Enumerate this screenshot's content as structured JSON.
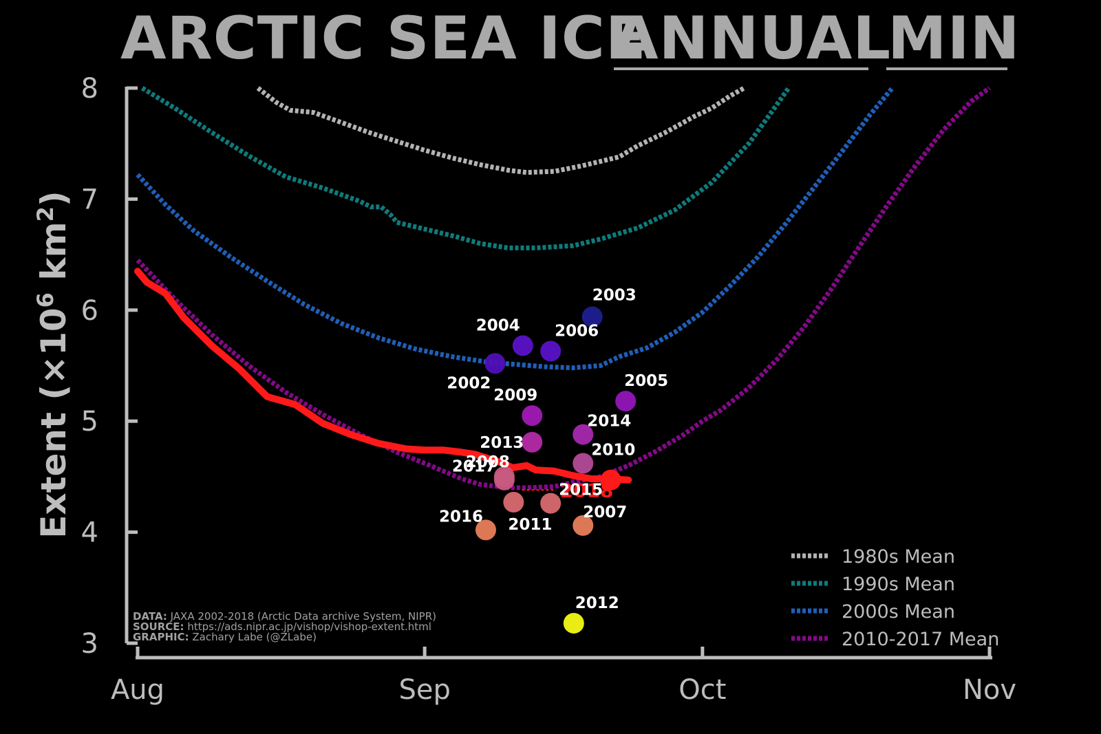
{
  "chart_data": {
    "type": "line",
    "title": {
      "part1": "ARCTIC SEA ICE",
      "part2": "ANNUAL",
      "part3": "MIN"
    },
    "ylabel": {
      "main": "Extent (×10",
      "sup": "6",
      "unit": " km",
      "sup2": "2",
      "close": ")"
    },
    "xlabel": "",
    "ylim": [
      3,
      8
    ],
    "yticks": [
      "3",
      "4",
      "5",
      "6",
      "7",
      "8"
    ],
    "xlim": [
      0,
      92
    ],
    "xticks": [
      {
        "label": "Aug",
        "x": 0
      },
      {
        "label": "Sep",
        "x": 31
      },
      {
        "label": "Oct",
        "x": 61
      },
      {
        "label": "Nov",
        "x": 92
      }
    ],
    "series": [
      {
        "name": "1980s Mean",
        "color": "#b3b3b3",
        "x": [
          13,
          15,
          16.5,
          19,
          22,
          25,
          28,
          31,
          34,
          37,
          40,
          42,
          45,
          48,
          52,
          54,
          57,
          60,
          62,
          64,
          65.5
        ],
        "values": [
          8.0,
          7.87,
          7.8,
          7.78,
          7.69,
          7.6,
          7.52,
          7.44,
          7.37,
          7.31,
          7.26,
          7.24,
          7.25,
          7.3,
          7.38,
          7.48,
          7.6,
          7.74,
          7.82,
          7.93,
          8.0
        ]
      },
      {
        "name": "1990s Mean",
        "color": "#0f7b7b",
        "x": [
          0.5,
          4,
          8,
          12,
          16,
          20,
          24,
          25.2,
          26.3,
          27.3,
          28,
          31,
          34,
          37,
          40,
          43,
          47,
          50,
          54,
          58,
          62,
          66,
          68,
          70.3
        ],
        "values": [
          8.0,
          7.82,
          7.6,
          7.39,
          7.2,
          7.1,
          6.98,
          6.93,
          6.93,
          6.86,
          6.79,
          6.73,
          6.67,
          6.6,
          6.56,
          6.56,
          6.58,
          6.64,
          6.74,
          6.9,
          7.15,
          7.5,
          7.73,
          8.0
        ]
      },
      {
        "name": "2000s Mean",
        "color": "#1f5fb8",
        "x": [
          0,
          3,
          6,
          10,
          14,
          18,
          22,
          26,
          30,
          34,
          38,
          41,
          44,
          47,
          50,
          52,
          55,
          58,
          61,
          64,
          67,
          70,
          73,
          76,
          79,
          81.5
        ],
        "values": [
          7.22,
          6.95,
          6.72,
          6.48,
          6.26,
          6.05,
          5.88,
          5.75,
          5.65,
          5.58,
          5.53,
          5.51,
          5.49,
          5.48,
          5.5,
          5.58,
          5.66,
          5.8,
          5.98,
          6.22,
          6.48,
          6.78,
          7.1,
          7.42,
          7.75,
          8.0
        ]
      },
      {
        "name": "2010-2017 Mean",
        "color": "#86098a",
        "x": [
          0,
          4,
          8,
          12,
          16,
          20,
          24,
          28,
          31,
          33,
          35,
          37,
          40,
          42,
          45,
          47,
          50,
          53,
          56,
          59,
          61,
          63,
          66,
          69,
          72,
          75,
          78,
          81,
          84,
          87,
          90,
          92
        ],
        "values": [
          6.45,
          6.1,
          5.78,
          5.5,
          5.26,
          5.06,
          4.88,
          4.72,
          4.62,
          4.55,
          4.48,
          4.43,
          4.4,
          4.4,
          4.41,
          4.45,
          4.5,
          4.6,
          4.73,
          4.88,
          5.0,
          5.1,
          5.3,
          5.55,
          5.85,
          6.2,
          6.58,
          6.95,
          7.3,
          7.62,
          7.88,
          8.0
        ]
      },
      {
        "name": "2018",
        "color": "#ff1a1a",
        "x": [
          0,
          1,
          3,
          5,
          8,
          11,
          14,
          17,
          20,
          23,
          26,
          29,
          31,
          33,
          35,
          36.5,
          38,
          39.5,
          40.5,
          42,
          43,
          45,
          47,
          49,
          51,
          53
        ],
        "values": [
          6.35,
          6.25,
          6.15,
          5.93,
          5.68,
          5.47,
          5.22,
          5.15,
          4.98,
          4.88,
          4.8,
          4.75,
          4.74,
          4.74,
          4.72,
          4.7,
          4.66,
          4.62,
          4.58,
          4.6,
          4.56,
          4.55,
          4.51,
          4.48,
          4.48,
          4.47
        ]
      }
    ],
    "minima_points": {
      "columns": [
        "label",
        "x",
        "y"
      ],
      "rows": [
        [
          "2002",
          38.6,
          5.52,
          "#5010b8"
        ],
        [
          "2003",
          49.1,
          5.94,
          "#1f1f90"
        ],
        [
          "2004",
          41.6,
          5.68,
          "#5b12c8"
        ],
        [
          "2005",
          52.7,
          5.18,
          "#9416b8"
        ],
        [
          "2006",
          44.6,
          5.63,
          "#5b12c8"
        ],
        [
          "2007",
          48.1,
          4.06,
          "#e87e5a"
        ],
        [
          "2008",
          39.6,
          4.5,
          "#c85a80"
        ],
        [
          "2009",
          42.6,
          5.05,
          "#a01ab4"
        ],
        [
          "2010",
          48.1,
          4.62,
          "#b44a98"
        ],
        [
          "2011",
          40.6,
          4.27,
          "#d86a70"
        ],
        [
          "2012",
          47.1,
          3.18,
          "#f4fa14"
        ],
        [
          "2013",
          42.6,
          4.81,
          "#b42aa8"
        ],
        [
          "2014",
          48.1,
          4.88,
          "#a828b0"
        ],
        [
          "2015",
          44.6,
          4.26,
          "#d86a70"
        ],
        [
          "2016",
          37.6,
          4.02,
          "#e87e5a"
        ],
        [
          "2017",
          39.6,
          4.47,
          "#c85a80"
        ],
        [
          "2018",
          51.1,
          4.47,
          "#ff1a1a"
        ]
      ]
    },
    "legend": {
      "position": "bottom-right",
      "entries": [
        "1980s Mean",
        "1990s Mean",
        "2000s Mean",
        "2010-2017 Mean"
      ]
    },
    "grid": false
  },
  "credits": {
    "data_label": "DATA:",
    "data_text": " JAXA 2002-2018 (Arctic Data archive System, NIPR)",
    "source_label": "SOURCE:",
    "source_text": " https://ads.nipr.ac.jp/vishop/vishop-extent.html",
    "graphic_label": "GRAPHIC:",
    "graphic_text": " Zachary Labe (@ZLabe)"
  },
  "annotation_2018": "2018"
}
